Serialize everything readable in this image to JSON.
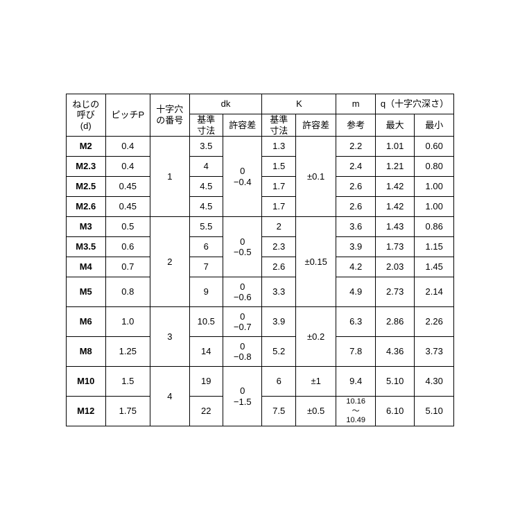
{
  "table": {
    "header": {
      "nominal": "ねじの\n呼び\n(d)",
      "pitch": "ピッチP",
      "slot_no": "十字穴\nの番号",
      "dk": "dk",
      "dk_std": "基準\n寸法",
      "dk_tol": "許容差",
      "K": "K",
      "k_std": "基準\n寸法",
      "k_tol": "許容差",
      "m": "m",
      "m_ref": "参考",
      "q": "q（十字穴深さ）",
      "q_max": "最大",
      "q_min": "最小"
    },
    "groups": [
      {
        "slot_no": "1",
        "dk_tol": "0\n−0.4",
        "k_tol": "±0.1",
        "rows": [
          {
            "nom": "M2",
            "pitch": "0.4",
            "dk_std": "3.5",
            "k_std": "1.3",
            "m": "2.2",
            "q_max": "1.01",
            "q_min": "0.60"
          },
          {
            "nom": "M2.3",
            "pitch": "0.4",
            "dk_std": "4",
            "k_std": "1.5",
            "m": "2.4",
            "q_max": "1.21",
            "q_min": "0.80"
          },
          {
            "nom": "M2.5",
            "pitch": "0.45",
            "dk_std": "4.5",
            "k_std": "1.7",
            "m": "2.6",
            "q_max": "1.42",
            "q_min": "1.00"
          },
          {
            "nom": "M2.6",
            "pitch": "0.45",
            "dk_std": "4.5",
            "k_std": "1.7",
            "m": "2.6",
            "q_max": "1.42",
            "q_min": "1.00"
          }
        ]
      },
      {
        "slot_no": "2",
        "k_tol": "±0.15",
        "subrows_a": [
          {
            "nom": "M3",
            "pitch": "0.5",
            "dk_std": "5.5",
            "k_std": "2",
            "m": "3.6",
            "q_max": "1.43",
            "q_min": "0.86"
          },
          {
            "nom": "M3.5",
            "pitch": "0.6",
            "dk_std": "6",
            "k_std": "2.3",
            "m": "3.9",
            "q_max": "1.73",
            "q_min": "1.15"
          },
          {
            "nom": "M4",
            "pitch": "0.7",
            "dk_std": "7",
            "k_std": "2.6",
            "m": "4.2",
            "q_max": "2.03",
            "q_min": "1.45"
          }
        ],
        "dk_tol_a": "0\n−0.5",
        "subrows_b": [
          {
            "nom": "M5",
            "pitch": "0.8",
            "dk_std": "9",
            "k_std": "3.3",
            "m": "4.9",
            "q_max": "2.73",
            "q_min": "2.14"
          }
        ],
        "dk_tol_b": "0\n−0.6"
      },
      {
        "slot_no": "3",
        "k_tol": "±0.2",
        "rows": [
          {
            "nom": "M6",
            "pitch": "1.0",
            "dk_std": "10.5",
            "dk_tol": "0\n−0.7",
            "k_std": "3.9",
            "m": "6.3",
            "q_max": "2.86",
            "q_min": "2.26"
          },
          {
            "nom": "M8",
            "pitch": "1.25",
            "dk_std": "14",
            "dk_tol": "0\n−0.8",
            "k_std": "5.2",
            "m": "7.8",
            "q_max": "4.36",
            "q_min": "3.73"
          }
        ]
      },
      {
        "slot_no": "4",
        "dk_tol": "0\n−1.5",
        "rows": [
          {
            "nom": "M10",
            "pitch": "1.5",
            "dk_std": "19",
            "k_std": "6",
            "k_tol": "±1",
            "m": "9.4",
            "q_max": "5.10",
            "q_min": "4.30"
          },
          {
            "nom": "M12",
            "pitch": "1.75",
            "dk_std": "22",
            "k_std": "7.5",
            "k_tol": "±0.5",
            "m": "10.16\n〜\n10.49",
            "q_max": "6.10",
            "q_min": "5.10"
          }
        ]
      }
    ]
  }
}
